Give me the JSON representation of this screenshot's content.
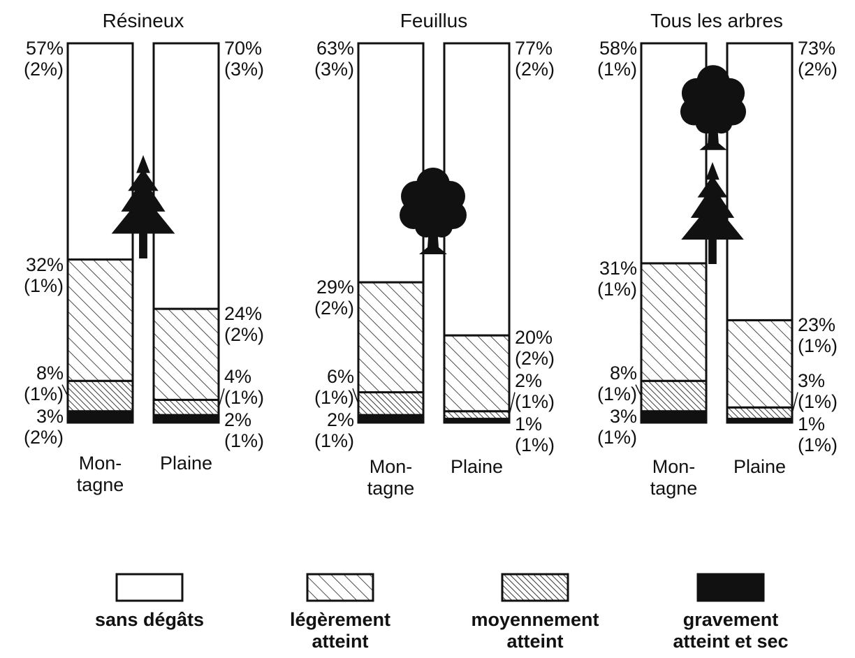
{
  "chart_data": [
    {
      "type": "bar",
      "stacked": true,
      "title": "Résineux",
      "categories": [
        "Mon-\ntagne",
        "Plaine"
      ],
      "ylim": [
        0,
        100
      ],
      "series": [
        {
          "name": "sans dégâts",
          "color": "#ffffff",
          "pattern": "none",
          "values": [
            57,
            70
          ],
          "value_labels": [
            "57%",
            "70%"
          ],
          "errors": [
            2,
            3
          ],
          "error_labels": [
            "(2%)",
            "(3%)"
          ]
        },
        {
          "name": "légèrement\natteint",
          "color": "#111111",
          "pattern": "hatch",
          "values": [
            32,
            24
          ],
          "value_labels": [
            "32%",
            "24%"
          ],
          "errors": [
            1,
            2
          ],
          "error_labels": [
            "(1%)",
            "(2%)"
          ]
        },
        {
          "name": "moyennement\natteint",
          "color": "#111111",
          "pattern": "dense-hatch",
          "values": [
            8,
            4
          ],
          "value_labels": [
            "8%",
            "4%"
          ],
          "errors": [
            1,
            1
          ],
          "error_labels": [
            "(1%)",
            "(1%)"
          ]
        },
        {
          "name": "gravement\natteint et sec",
          "color": "#111111",
          "pattern": "solid",
          "values": [
            3,
            2
          ],
          "value_labels": [
            "3%",
            "2%"
          ],
          "errors": [
            2,
            1
          ],
          "error_labels": [
            "(2%)",
            "(1%)"
          ]
        }
      ]
    },
    {
      "type": "bar",
      "stacked": true,
      "title": "Feuillus",
      "categories": [
        "Mon-\ntagne",
        "Plaine"
      ],
      "ylim": [
        0,
        100
      ],
      "series": [
        {
          "name": "sans dégâts",
          "color": "#ffffff",
          "pattern": "none",
          "values": [
            63,
            77
          ],
          "value_labels": [
            "63%",
            "77%"
          ],
          "errors": [
            3,
            2
          ],
          "error_labels": [
            "(3%)",
            "(2%)"
          ]
        },
        {
          "name": "légèrement\natteint",
          "color": "#111111",
          "pattern": "hatch",
          "values": [
            29,
            20
          ],
          "value_labels": [
            "29%",
            "20%"
          ],
          "errors": [
            2,
            2
          ],
          "error_labels": [
            "(2%)",
            "(2%)"
          ]
        },
        {
          "name": "moyennement\natteint",
          "color": "#111111",
          "pattern": "dense-hatch",
          "values": [
            6,
            2
          ],
          "value_labels": [
            "6%",
            "2%"
          ],
          "errors": [
            1,
            1
          ],
          "error_labels": [
            "(1%)",
            "(1%)"
          ]
        },
        {
          "name": "gravement\natteint et sec",
          "color": "#111111",
          "pattern": "solid",
          "values": [
            2,
            1
          ],
          "value_labels": [
            "2%",
            "1%"
          ],
          "errors": [
            1,
            1
          ],
          "error_labels": [
            "(1%)",
            "(1%)"
          ]
        }
      ]
    },
    {
      "type": "bar",
      "stacked": true,
      "title": "Tous les arbres",
      "categories": [
        "Mon-\ntagne",
        "Plaine"
      ],
      "ylim": [
        0,
        100
      ],
      "series": [
        {
          "name": "sans dégâts",
          "color": "#ffffff",
          "pattern": "none",
          "values": [
            58,
            73
          ],
          "value_labels": [
            "58%",
            "73%"
          ],
          "errors": [
            1,
            2
          ],
          "error_labels": [
            "(1%)",
            "(2%)"
          ]
        },
        {
          "name": "légèrement\natteint",
          "color": "#111111",
          "pattern": "hatch",
          "values": [
            31,
            23
          ],
          "value_labels": [
            "31%",
            "23%"
          ],
          "errors": [
            1,
            1
          ],
          "error_labels": [
            "(1%)",
            "(1%)"
          ]
        },
        {
          "name": "moyennement\natteint",
          "color": "#111111",
          "pattern": "dense-hatch",
          "values": [
            8,
            3
          ],
          "value_labels": [
            "8%",
            "3%"
          ],
          "errors": [
            1,
            1
          ],
          "error_labels": [
            "(1%)",
            "(1%)"
          ]
        },
        {
          "name": "gravement\natteint et sec",
          "color": "#111111",
          "pattern": "solid",
          "values": [
            3,
            1
          ],
          "value_labels": [
            "3%",
            "1%"
          ],
          "errors": [
            1,
            1
          ],
          "error_labels": [
            "(1%)",
            "(1%)"
          ]
        }
      ]
    }
  ]
}
